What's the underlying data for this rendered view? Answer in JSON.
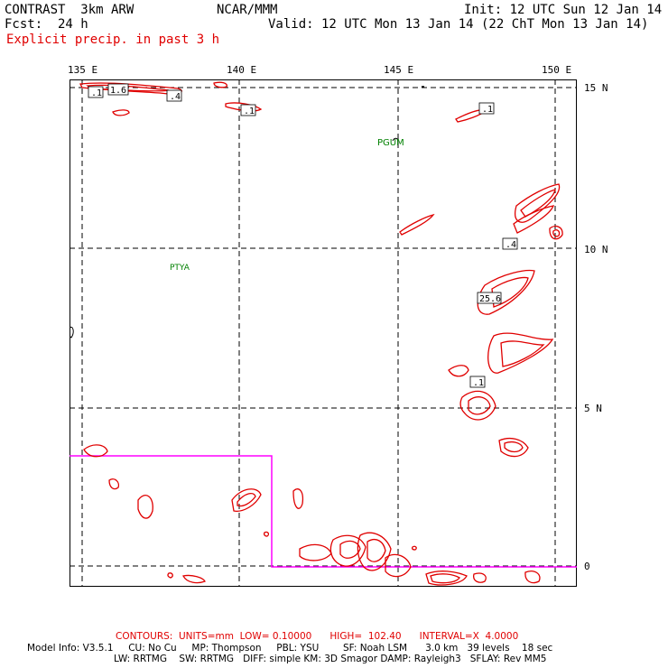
{
  "header": {
    "model": "CONTRAST  3km ARW",
    "center": "NCAR/MMM",
    "init": "Init: 12 UTC Sun 12 Jan 14",
    "fcst_label": "Fcst:",
    "fcst_value": "24 h",
    "valid": "Valid: 12 UTC Mon 13 Jan 14 (22 ChT Mon 13 Jan 14)",
    "field": "Explicit precip. in past 3 h"
  },
  "map": {
    "lon_ticks": [
      "135 E",
      "140 E",
      "145 E",
      "150 E"
    ],
    "lat_ticks": [
      "15 N",
      "10 N",
      "5 N",
      "0"
    ],
    "stations": [
      {
        "name": "PGUM",
        "color": "#008000"
      },
      {
        "name": "PTYA",
        "color": "#008000"
      }
    ],
    "contour_labels": [
      ".1",
      "1.6",
      ".4",
      ".1",
      ".1",
      ".4",
      "25.6",
      ".1"
    ],
    "colors": {
      "contour": "#e00000",
      "domain_boundary": "#ff00ff",
      "grid": "#000000",
      "station": "#008000"
    }
  },
  "footer": {
    "contours": "CONTOURS:  UNITS=mm  LOW= 0.10000      HIGH=  102.40      INTERVAL=X  4.0000",
    "model_info": "Model Info: V3.5.1     CU: No Cu     MP: Thompson     PBL: YSU        SF: Noah LSM      3.0 km   39 levels    18 sec",
    "model_info2": "LW: RRTMG    SW: RRTMG   DIFF: simple KM: 3D Smagor DAMP: Rayleigh3   SFLAY: Rev MM5"
  }
}
